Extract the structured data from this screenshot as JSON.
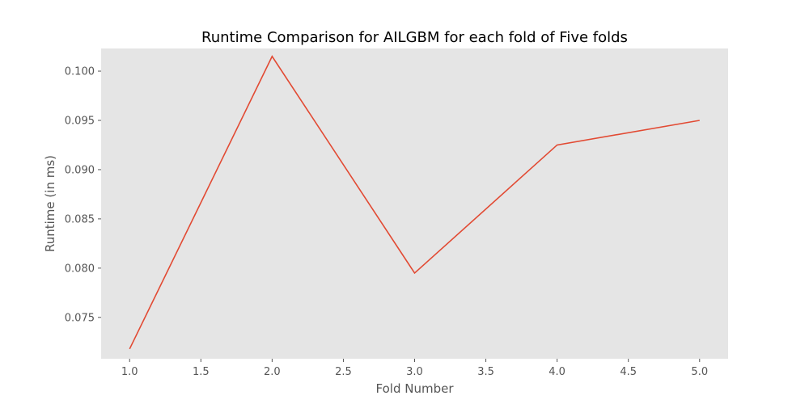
{
  "chart_data": {
    "type": "line",
    "title": "Runtime Comparison for AILGBM for each fold of Five folds",
    "xlabel": "Fold Number",
    "ylabel": "Runtime (in ms)",
    "x": [
      1,
      2,
      3,
      4,
      5
    ],
    "series": [
      {
        "values": [
          0.0718,
          0.1015,
          0.0795,
          0.0925,
          0.095
        ]
      }
    ],
    "xlim": [
      0.8,
      5.2
    ],
    "ylim": [
      0.0708,
      0.1023
    ],
    "xticks": [
      1.0,
      1.5,
      2.0,
      2.5,
      3.0,
      3.5,
      4.0,
      4.5,
      5.0
    ],
    "xtick_labels": [
      "1.0",
      "1.5",
      "2.0",
      "2.5",
      "3.0",
      "3.5",
      "4.0",
      "4.5",
      "5.0"
    ],
    "yticks": [
      0.075,
      0.08,
      0.085,
      0.09,
      0.095,
      0.1
    ],
    "ytick_labels": [
      "0.075",
      "0.080",
      "0.085",
      "0.090",
      "0.095",
      "0.100"
    ],
    "grid": false,
    "colors": {
      "line": "#e24a33",
      "plot_background": "#e5e5e5",
      "text": "#555555"
    }
  }
}
